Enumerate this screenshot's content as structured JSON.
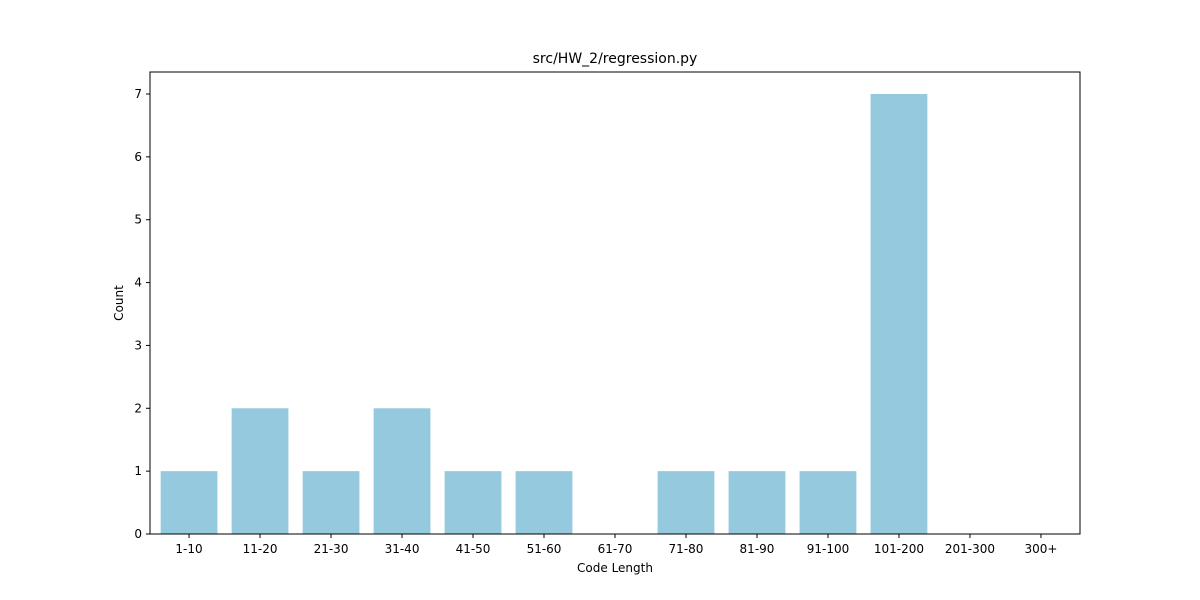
{
  "chart_data": {
    "type": "bar",
    "title": "src/HW_2/regression.py",
    "xlabel": "Code Length",
    "ylabel": "Count",
    "categories": [
      "1-10",
      "11-20",
      "21-30",
      "31-40",
      "41-50",
      "51-60",
      "61-70",
      "71-80",
      "81-90",
      "91-100",
      "101-200",
      "201-300",
      "300+"
    ],
    "values": [
      1,
      2,
      1,
      2,
      1,
      1,
      0,
      1,
      1,
      1,
      7,
      0,
      0
    ],
    "ylim": [
      0,
      7.35
    ],
    "yticks": [
      "0",
      "1",
      "2",
      "3",
      "4",
      "5",
      "6",
      "7"
    ],
    "bar_color": "#95c9de",
    "grid": false
  }
}
